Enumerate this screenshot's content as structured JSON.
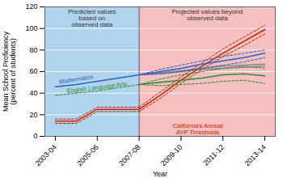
{
  "chart_data": {
    "type": "line",
    "xlabel": "Year",
    "ylabel": "Mean School Proficiency\n(percent of students)",
    "categories": [
      "2003-04",
      null,
      "2005-06",
      null,
      "2007-08",
      null,
      "2009-10",
      null,
      "2011-12",
      null,
      "2013-14"
    ],
    "ylim": [
      0,
      120
    ],
    "yticks": [
      0,
      20,
      40,
      60,
      80,
      100,
      120
    ],
    "grid": true,
    "regions": [
      {
        "label": "Predicted values\nbased on\nobserved data",
        "color": "#aed4ee",
        "end": "2007-08"
      },
      {
        "label": "Projected values beyond\nobserved data",
        "color": "#f5c0bf",
        "start": "2007-08"
      }
    ],
    "series": [
      {
        "color": "#888888",
        "line_style": "solid",
        "values": [
          null,
          null,
          null,
          null,
          57,
          59,
          61,
          63,
          65,
          66,
          67
        ]
      },
      {
        "color": "#888888",
        "line_style": "solid",
        "values": [
          null,
          null,
          null,
          null,
          57,
          58,
          60,
          62,
          63,
          64,
          65
        ]
      },
      {
        "color": "#cc2200",
        "line_style": "solid",
        "values": [
          14,
          14,
          25,
          25,
          25,
          null,
          null,
          null,
          null,
          null,
          null
        ]
      },
      {
        "color": "#cc2200",
        "line_style": "dashed",
        "values": [
          16,
          16,
          27,
          27,
          27,
          null,
          null,
          null,
          null,
          null,
          null
        ]
      },
      {
        "color": "#cc2200",
        "line_style": "dashed",
        "values": [
          12,
          12,
          23,
          23,
          23,
          null,
          null,
          null,
          null,
          null,
          null
        ]
      },
      {
        "color": "#cc2200",
        "line_style": "solid",
        "values": [
          null,
          null,
          null,
          null,
          25,
          38,
          52,
          65,
          77,
          88,
          99
        ]
      },
      {
        "color": "#cc2200",
        "line_style": "dashed",
        "values": [
          null,
          null,
          null,
          null,
          27,
          41,
          55,
          68,
          81,
          92,
          103
        ]
      },
      {
        "color": "#cc2200",
        "line_style": "dashed",
        "values": [
          null,
          null,
          null,
          null,
          23,
          35,
          49,
          62,
          74,
          84,
          95
        ]
      },
      {
        "color": "#2e8b2e",
        "line_style": "dashed",
        "values": [
          38,
          40,
          42,
          45,
          48,
          null,
          null,
          null,
          null,
          null,
          null
        ]
      },
      {
        "color": "#2e8b2e",
        "line_style": "solid",
        "values": [
          null,
          null,
          null,
          null,
          48,
          50,
          52,
          54,
          57,
          58,
          56
        ]
      },
      {
        "color": "#2e8b2e",
        "line_style": "dashed",
        "values": [
          null,
          null,
          null,
          null,
          48,
          53,
          57,
          60,
          63,
          65,
          63
        ]
      },
      {
        "color": "#2e8b2e",
        "line_style": "dashed",
        "values": [
          null,
          null,
          null,
          null,
          48,
          47,
          48,
          49,
          51,
          52,
          49
        ]
      },
      {
        "color": "#3060c0",
        "line_style": "solid",
        "values": [
          46,
          48,
          51,
          54,
          57,
          null,
          null,
          null,
          null,
          null,
          null
        ]
      },
      {
        "color": "#3060c0",
        "line_style": "solid",
        "values": [
          null,
          null,
          null,
          null,
          57,
          60,
          63,
          67,
          70,
          73,
          77
        ]
      },
      {
        "color": "#3060c0",
        "line_style": "dashed",
        "values": [
          null,
          null,
          null,
          null,
          57,
          62,
          66,
          70,
          74,
          77,
          80
        ]
      },
      {
        "color": "#3060c0",
        "line_style": "dashed",
        "values": [
          null,
          null,
          null,
          null,
          57,
          58,
          60,
          63,
          66,
          69,
          73
        ]
      }
    ],
    "annotations": [
      {
        "text": "Mathematics",
        "color": "#3060c0"
      },
      {
        "text": "English Language Arts",
        "color": "#2e8b2e"
      },
      {
        "text": "California's Annual\nAYP Thresholds",
        "color": "#cc2200"
      }
    ]
  }
}
